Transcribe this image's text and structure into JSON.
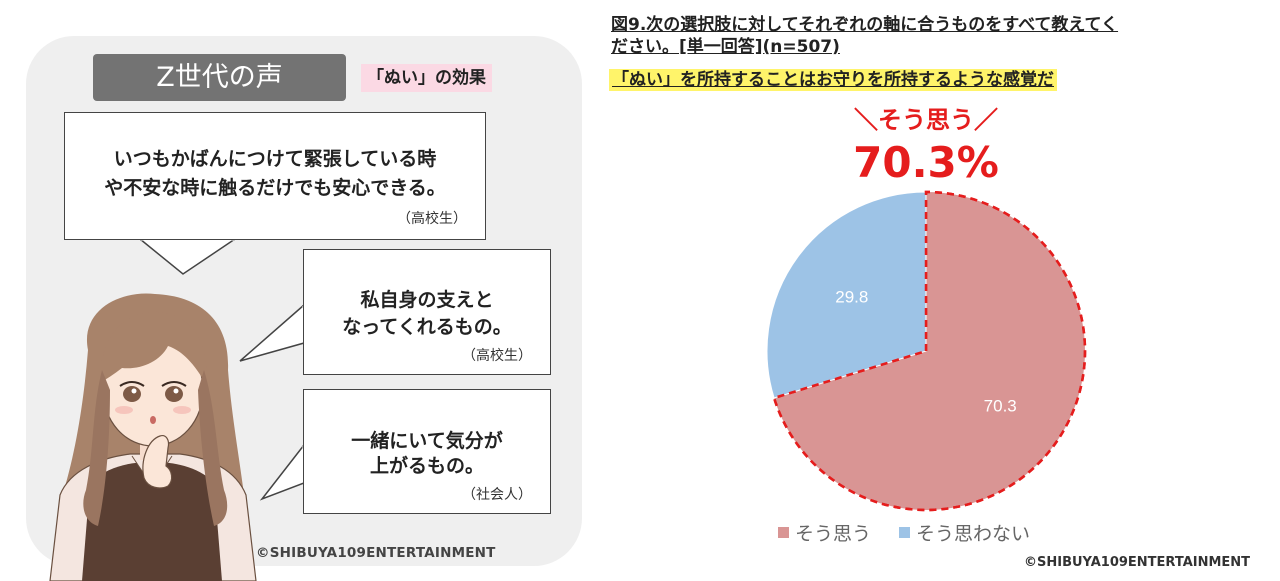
{
  "left": {
    "badge_title": "Z世代の声",
    "effect_tag": "「ぬい」の効果",
    "quotes": [
      {
        "lines": [
          "いつもかばんにつけて緊張している時",
          "や不安な時に触るだけでも安心できる。"
        ],
        "speaker": "（高校生）"
      },
      {
        "lines": [
          "私自身の支えと",
          "なってくれるもの。"
        ],
        "speaker": "（高校生）"
      },
      {
        "lines": [
          "一緒にいて気分が",
          "上がるもの。"
        ],
        "speaker": "（社会人）"
      }
    ],
    "copyright": "©SHIBUYA109ENTERTAINMENT"
  },
  "figure": {
    "title_line1": "図9.次の選択肢に対してそれぞれの軸に合うものをすべて教えてく",
    "title_line2": "ださい。[単一回答](n=507)",
    "question": "「ぬい」を所持することはお守りを所持するような感覚だ",
    "headline_label": "＼そう思う／",
    "headline_value": "70.3%",
    "copyright": "©SHIBUYA109ENTERTAINMENT"
  },
  "chart_data": {
    "type": "pie",
    "title": "「ぬい」を所持することはお守りを所持するような感覚だ",
    "slices": [
      {
        "label": "そう思う",
        "value": 70.3,
        "display": "70.3",
        "color": "#d99594"
      },
      {
        "label": "そう思わない",
        "value": 29.8,
        "display": "29.8",
        "color": "#9dc3e6"
      }
    ],
    "legend_position": "bottom",
    "highlight_border_color": "#e51d1d"
  }
}
